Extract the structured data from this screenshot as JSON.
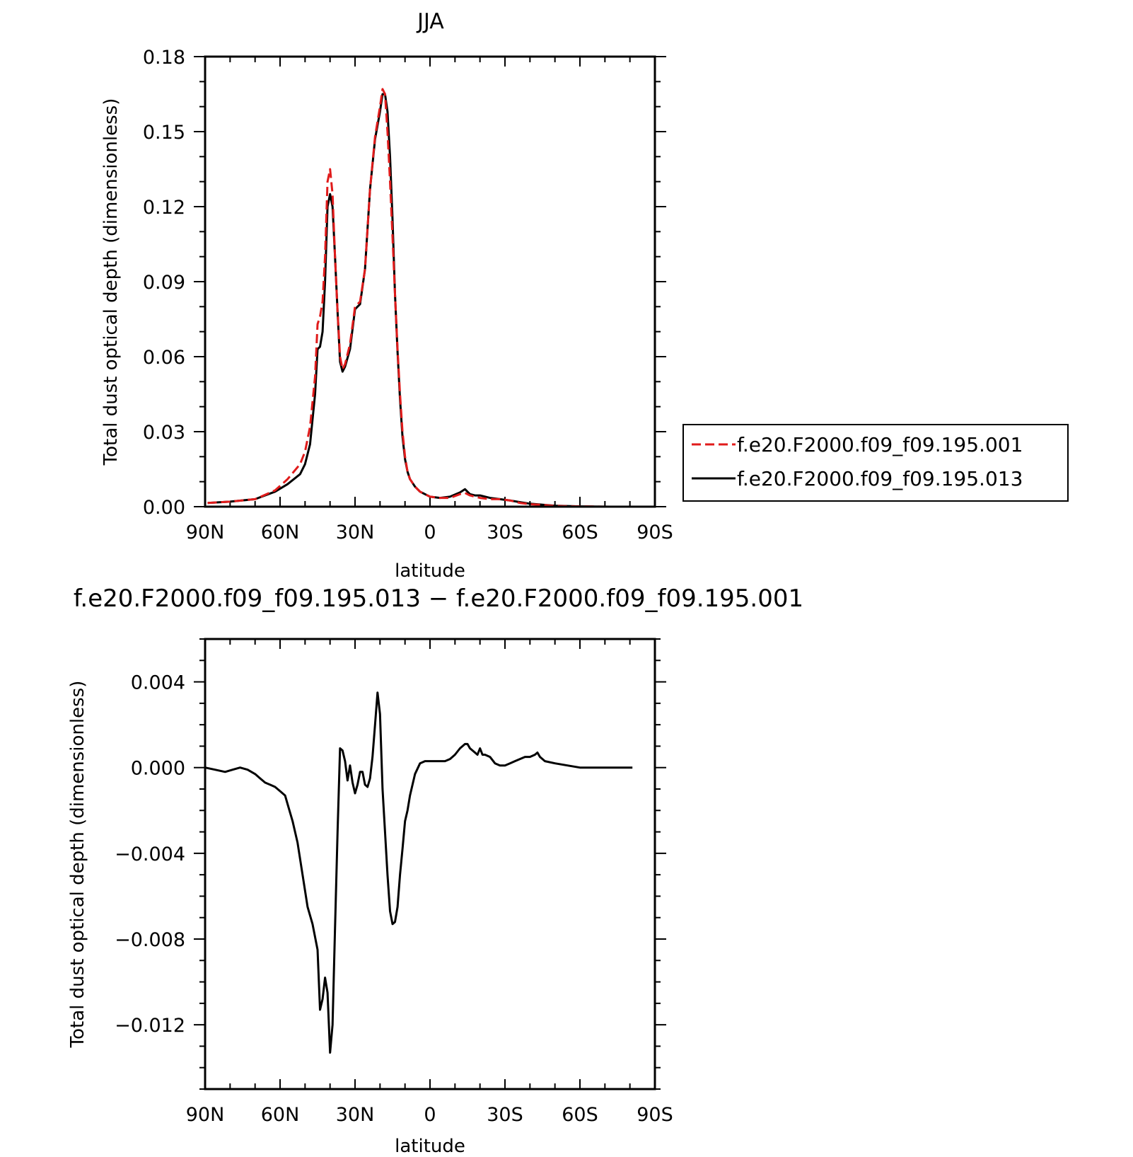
{
  "colors": {
    "series_red": "#e01b1b",
    "series_black": "#000000",
    "axis": "#000000"
  },
  "chart_data": [
    {
      "type": "line",
      "title": "JJA",
      "xlabel": "latitude",
      "ylabel": "Total dust optical depth (dimensionless)",
      "xlim": [
        90,
        -90
      ],
      "ylim": [
        0,
        0.18
      ],
      "x_ticks": [
        "90N",
        "60N",
        "30N",
        "0",
        "30S",
        "60S",
        "90S"
      ],
      "y_ticks": [
        "0.00",
        "0.03",
        "0.06",
        "0.09",
        "0.12",
        "0.15",
        "0.18"
      ],
      "legend_position": "right",
      "series": [
        {
          "name": "f.e20.F2000.f09_f09.195.001",
          "style": "dashed",
          "color": "#e01b1b",
          "x": [
            89,
            80,
            70,
            62,
            57,
            52,
            50,
            48,
            46,
            45,
            44,
            43,
            42,
            41,
            40,
            39,
            38,
            37,
            36,
            35,
            34,
            32,
            30,
            28,
            26,
            24,
            22,
            20,
            19,
            18,
            17,
            16,
            15,
            14,
            13,
            12,
            11,
            10,
            9,
            8,
            6,
            4,
            2,
            0,
            -4,
            -8,
            -12,
            -14,
            -16,
            -18,
            -20,
            -24,
            -28,
            -32,
            -36,
            -40,
            -45,
            -50,
            -60,
            -72
          ],
          "y": [
            0.0015,
            0.002,
            0.003,
            0.0065,
            0.011,
            0.017,
            0.022,
            0.032,
            0.052,
            0.073,
            0.076,
            0.082,
            0.1,
            0.13,
            0.135,
            0.125,
            0.1,
            0.078,
            0.06,
            0.055,
            0.057,
            0.065,
            0.08,
            0.082,
            0.095,
            0.127,
            0.148,
            0.16,
            0.167,
            0.165,
            0.15,
            0.13,
            0.108,
            0.085,
            0.063,
            0.045,
            0.03,
            0.02,
            0.014,
            0.011,
            0.008,
            0.006,
            0.005,
            0.004,
            0.0035,
            0.0035,
            0.005,
            0.0055,
            0.0045,
            0.004,
            0.0035,
            0.003,
            0.003,
            0.0025,
            0.0015,
            0.001,
            0.0007,
            0.0003,
            0.0001,
            0.0
          ]
        },
        {
          "name": "f.e20.F2000.f09_f09.195.013",
          "style": "solid",
          "color": "#000000",
          "x": [
            89,
            80,
            70,
            62,
            57,
            52,
            50,
            48,
            46,
            45,
            44,
            43,
            42,
            41,
            40,
            39,
            38,
            37,
            36,
            35,
            34,
            32,
            30,
            28,
            26,
            24,
            22,
            20,
            19,
            18,
            17,
            16,
            15,
            14,
            13,
            12,
            11,
            10,
            9,
            8,
            6,
            4,
            2,
            0,
            -4,
            -8,
            -12,
            -14,
            -16,
            -18,
            -20,
            -24,
            -28,
            -32,
            -36,
            -40,
            -45,
            -50,
            -60,
            -72
          ],
          "y": [
            0.0015,
            0.002,
            0.003,
            0.006,
            0.009,
            0.013,
            0.017,
            0.025,
            0.045,
            0.063,
            0.064,
            0.07,
            0.09,
            0.12,
            0.125,
            0.12,
            0.1,
            0.078,
            0.058,
            0.054,
            0.056,
            0.063,
            0.079,
            0.081,
            0.095,
            0.127,
            0.147,
            0.158,
            0.165,
            0.165,
            0.158,
            0.14,
            0.115,
            0.085,
            0.062,
            0.043,
            0.028,
            0.019,
            0.014,
            0.011,
            0.008,
            0.006,
            0.005,
            0.004,
            0.0035,
            0.004,
            0.0057,
            0.007,
            0.005,
            0.0045,
            0.0045,
            0.0035,
            0.003,
            0.0025,
            0.0018,
            0.0012,
            0.0008,
            0.0004,
            0.0001,
            0.0
          ]
        }
      ]
    },
    {
      "type": "line",
      "title": "f.e20.F2000.f09_f09.195.013 − f.e20.F2000.f09_f09.195.001",
      "xlabel": "latitude",
      "ylabel": "Total dust optical depth (dimensionless)",
      "xlim": [
        90,
        -90
      ],
      "ylim": [
        -0.015,
        0.006
      ],
      "x_ticks": [
        "90N",
        "60N",
        "30N",
        "0",
        "30S",
        "60S",
        "90S"
      ],
      "y_ticks": [
        "−0.012",
        "−0.008",
        "−0.004",
        "0.000",
        "0.004"
      ],
      "series": [
        {
          "name": "",
          "style": "solid",
          "color": "#000000",
          "x": [
            90,
            86,
            82,
            79,
            76,
            73,
            70,
            68,
            66,
            64,
            62,
            60,
            58,
            57,
            55,
            53,
            51,
            49,
            47,
            45,
            44,
            43,
            42,
            41,
            40,
            39,
            38,
            37,
            36,
            35,
            34,
            33,
            32,
            31,
            30,
            29,
            28,
            27,
            26,
            25,
            24,
            23,
            22,
            21,
            20,
            19,
            18,
            17,
            16,
            15,
            14,
            13,
            12,
            11,
            10,
            9,
            8,
            6,
            4,
            2,
            0,
            -2,
            -4,
            -6,
            -8,
            -10,
            -12,
            -14,
            -15,
            -16,
            -17,
            -18,
            -19,
            -20,
            -21,
            -22,
            -24,
            -26,
            -28,
            -30,
            -32,
            -34,
            -36,
            -38,
            -40,
            -42,
            -43,
            -44,
            -46,
            -50,
            -55,
            -60,
            -70,
            -81
          ],
          "y": [
            0.0,
            -0.0001,
            -0.0002,
            -0.0001,
            0.0,
            -0.0001,
            -0.0003,
            -0.0005,
            -0.0007,
            -0.0008,
            -0.0009,
            -0.0011,
            -0.0013,
            -0.0017,
            -0.0025,
            -0.0035,
            -0.005,
            -0.0065,
            -0.0073,
            -0.0085,
            -0.0113,
            -0.0108,
            -0.0098,
            -0.0105,
            -0.0133,
            -0.012,
            -0.0075,
            -0.003,
            0.0009,
            0.0008,
            0.0003,
            -0.0006,
            0.0001,
            -0.0007,
            -0.0012,
            -0.0008,
            -0.0002,
            -0.0002,
            -0.0008,
            -0.0009,
            -0.0005,
            0.0005,
            0.002,
            0.0035,
            0.0025,
            -0.001,
            -0.003,
            -0.005,
            -0.0067,
            -0.0073,
            -0.0072,
            -0.0065,
            -0.005,
            -0.0038,
            -0.0025,
            -0.002,
            -0.0013,
            -0.0003,
            0.0002,
            0.0003,
            0.0003,
            0.0003,
            0.0003,
            0.0003,
            0.0004,
            0.0006,
            0.0009,
            0.0011,
            0.0011,
            0.0009,
            0.0008,
            0.0007,
            0.0006,
            0.0009,
            0.0006,
            0.0006,
            0.0005,
            0.0002,
            0.0001,
            0.0001,
            0.0002,
            0.0003,
            0.0004,
            0.0005,
            0.0005,
            0.0006,
            0.0007,
            0.0005,
            0.0003,
            0.0002,
            0.0001,
            0.0,
            0.0,
            0.0
          ]
        }
      ]
    }
  ]
}
